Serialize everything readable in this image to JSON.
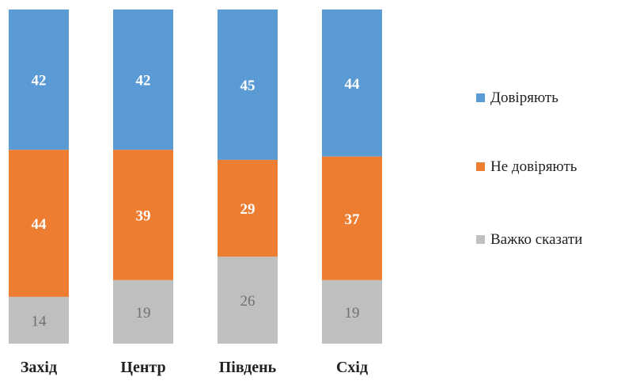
{
  "chart_data": {
    "type": "bar",
    "stacked": true,
    "stack_mode": "percent",
    "categories": [
      "Захід",
      "Центр",
      "Південь",
      "Схід"
    ],
    "series": [
      {
        "name": "Довіряють",
        "values": [
          42,
          42,
          45,
          44
        ],
        "color": "#5B9BD5"
      },
      {
        "name": "Не довіряють",
        "values": [
          44,
          39,
          29,
          37
        ],
        "color": "#ED7D31"
      },
      {
        "name": "Важко сказати",
        "values": [
          14,
          19,
          26,
          19
        ],
        "color": "#BFBFBF"
      }
    ],
    "ylim": [
      0,
      100
    ],
    "grid": false,
    "legend_position": "right"
  }
}
